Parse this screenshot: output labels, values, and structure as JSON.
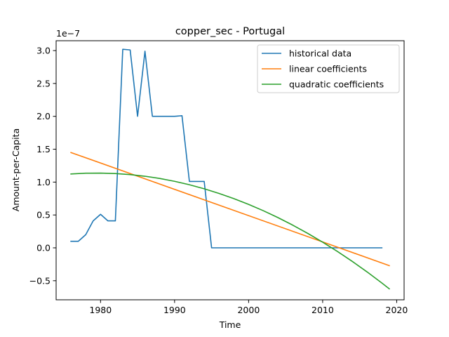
{
  "chart_data": {
    "type": "line",
    "title": "copper_sec - Portugal",
    "xlabel": "Time",
    "ylabel": "Amount-per-Capita",
    "y_scale_label": "1e−7",
    "xlim": [
      1974,
      2021
    ],
    "ylim": [
      -0.79,
      3.15
    ],
    "x_ticks": [
      1980,
      1990,
      2000,
      2010,
      2020
    ],
    "x_tick_labels": [
      "1980",
      "1990",
      "2000",
      "2010",
      "2020"
    ],
    "y_ticks": [
      -0.5,
      0.0,
      0.5,
      1.0,
      1.5,
      2.0,
      2.5,
      3.0
    ],
    "y_tick_labels": [
      "−0.5",
      "0.0",
      "0.5",
      "1.0",
      "1.5",
      "2.0",
      "2.5",
      "3.0"
    ],
    "grid": false,
    "legend_position": "top-right",
    "series": [
      {
        "name": "historical data",
        "color": "#1f77b4",
        "x": [
          1976,
          1977,
          1978,
          1979,
          1980,
          1981,
          1982,
          1983,
          1984,
          1985,
          1986,
          1987,
          1988,
          1989,
          1990,
          1991,
          1992,
          1993,
          1994,
          1995,
          1996,
          1997,
          1998,
          1999,
          2000,
          2001,
          2002,
          2003,
          2004,
          2005,
          2006,
          2007,
          2008,
          2009,
          2010,
          2011,
          2012,
          2013,
          2014,
          2015,
          2016,
          2017,
          2018
        ],
        "y": [
          0.1,
          0.1,
          0.2,
          0.41,
          0.51,
          0.41,
          0.41,
          3.02,
          3.01,
          2.0,
          2.99,
          2.0,
          2.0,
          2.0,
          2.0,
          2.01,
          1.01,
          1.01,
          1.01,
          0.0,
          0.0,
          0.0,
          0.0,
          0.0,
          0.0,
          0.0,
          0.0,
          0.0,
          0.0,
          0.0,
          0.0,
          0.0,
          0.0,
          0.0,
          0.0,
          0.0,
          0.0,
          0.0,
          0.0,
          0.0,
          0.0,
          0.0,
          0.0
        ]
      },
      {
        "name": "linear coefficients",
        "color": "#ff7f0e",
        "x": [
          1976,
          2019
        ],
        "y": [
          1.45,
          -0.27
        ]
      },
      {
        "name": "quadratic coefficients",
        "color": "#2ca02c",
        "x": [
          1976,
          1978,
          1980,
          1982,
          1984,
          1986,
          1988,
          1990,
          1992,
          1994,
          1996,
          1998,
          2000,
          2002,
          2004,
          2006,
          2008,
          2010,
          2012,
          2014,
          2016,
          2018,
          2019
        ],
        "y": [
          1.124,
          1.135,
          1.137,
          1.13,
          1.114,
          1.089,
          1.055,
          1.012,
          0.96,
          0.898,
          0.828,
          0.749,
          0.661,
          0.564,
          0.458,
          0.343,
          0.219,
          0.086,
          -0.055,
          -0.206,
          -0.366,
          -0.535,
          -0.623
        ]
      }
    ]
  }
}
